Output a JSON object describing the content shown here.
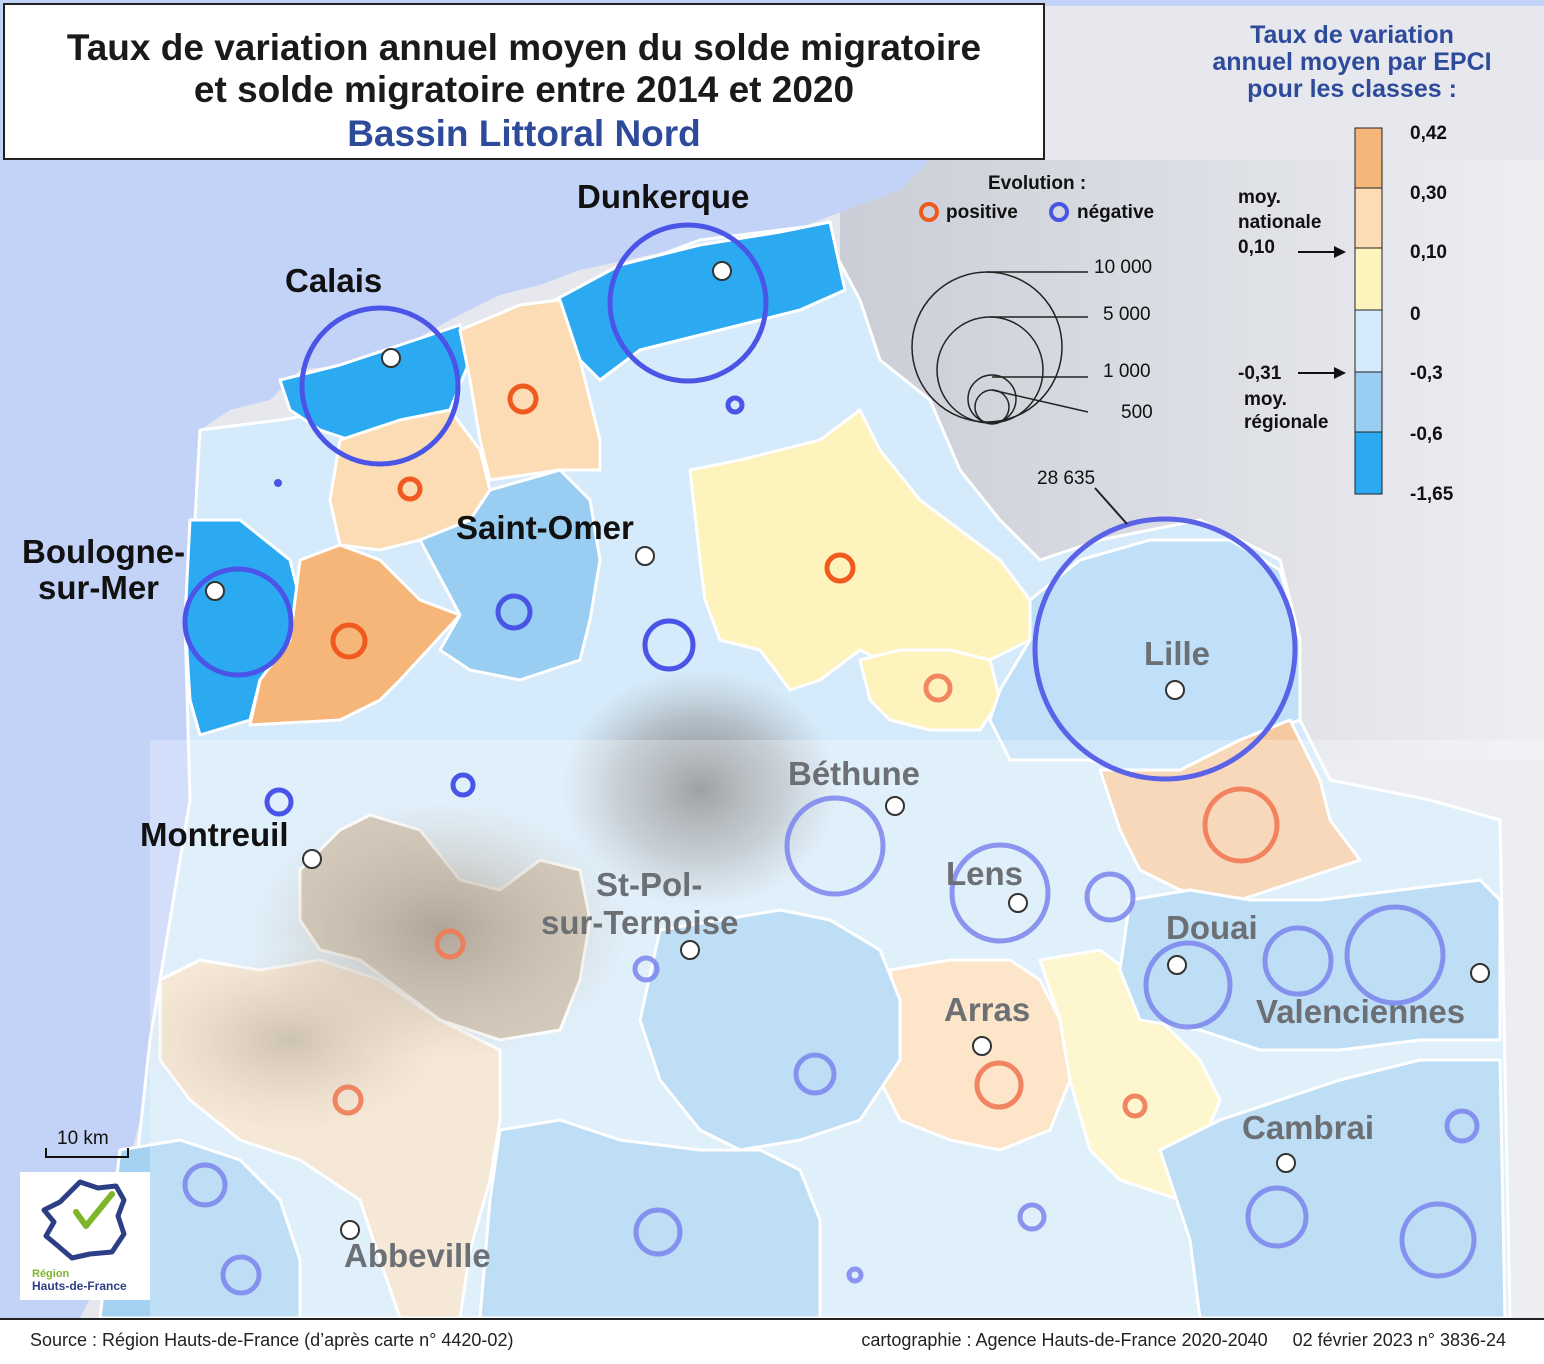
{
  "title": {
    "line1": "Taux de variation annuel moyen du solde migratoire",
    "line2": "et solde migratoire entre 2014 et 2020",
    "line3": "Bassin Littoral Nord"
  },
  "colors": {
    "sea": "#c3d3f8",
    "class_0_30_0_42": "#f6b679",
    "class_0_10_0_30": "#fbdcb4",
    "class_0_0_10": "#fdf3bd",
    "class_m03_0": "#d5eafa",
    "class_m06_m03": "#99cdf1",
    "class_m165_m06": "#2caaf1",
    "circle_positive": "#f05a1f",
    "circle_negative": "#4a55e8"
  },
  "cities": [
    {
      "name": "Dunkerque",
      "emphasis": "bold-black"
    },
    {
      "name": "Calais",
      "emphasis": "bold-black"
    },
    {
      "name": "Boulogne-",
      "emphasis": "bold-black"
    },
    {
      "name": "sur-Mer",
      "emphasis": "bold-black"
    },
    {
      "name": "Saint-Omer",
      "emphasis": "bold-black"
    },
    {
      "name": "Montreuil",
      "emphasis": "bold-black"
    },
    {
      "name": "Lille",
      "emphasis": "grey"
    },
    {
      "name": "Béthune",
      "emphasis": "grey"
    },
    {
      "name": "Lens",
      "emphasis": "grey"
    },
    {
      "name": "St-Pol-",
      "emphasis": "grey"
    },
    {
      "name": "sur-Ternoise",
      "emphasis": "grey"
    },
    {
      "name": "Douai",
      "emphasis": "grey"
    },
    {
      "name": "Valenciennes",
      "emphasis": "grey"
    },
    {
      "name": "Arras",
      "emphasis": "grey"
    },
    {
      "name": "Cambrai",
      "emphasis": "grey"
    },
    {
      "name": "Abbeville",
      "emphasis": "grey"
    }
  ],
  "legend": {
    "title_l1": "Taux de variation",
    "title_l2": "annuel moyen par EPCI",
    "title_l3": "pour les classes :",
    "breaks": [
      "0,42",
      "0,30",
      "0,10",
      "0",
      "-0,3",
      "-0,6",
      "-1,65"
    ],
    "national_avg_l1": "moy.",
    "national_avg_l2": "nationale",
    "national_avg_value": "0,10",
    "regional_avg_value": "-0,31",
    "regional_avg_l1": "moy.",
    "regional_avg_l2": "régionale",
    "evolution_title": "Evolution :",
    "positive": "positive",
    "negative": "négative",
    "size_values": [
      "10 000",
      "5 000",
      "1 000",
      "500"
    ],
    "lille_value": "28 635"
  },
  "scale": {
    "label": "10 km"
  },
  "logo": {
    "line1": "Région",
    "line2": "Hauts-de-France"
  },
  "footer": {
    "source": "Source : Région Hauts-de-France (d’après carte n° 4420-02)",
    "cartography": "cartographie : Agence Hauts-de-France 2020-2040     02 février 2023 n° 3836-24"
  }
}
